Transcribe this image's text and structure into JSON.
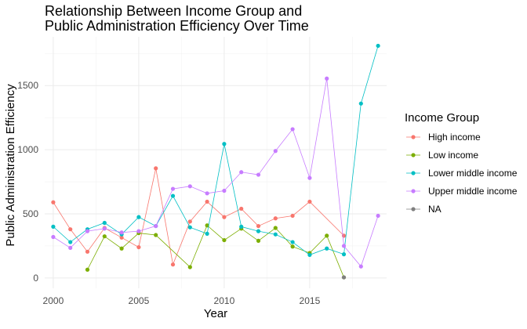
{
  "chart_data": {
    "type": "line",
    "title_lines": [
      "Relationship Between Income Group and",
      "Public Administration Efficiency Over Time"
    ],
    "xlabel": "Year",
    "ylabel": "Public Administration Efficiency",
    "xlim": [
      1999.5,
      2019.5
    ],
    "ylim": [
      -80,
      1880
    ],
    "x_ticks": [
      2000,
      2005,
      2010,
      2015
    ],
    "y_ticks": [
      0,
      500,
      1000,
      1500
    ],
    "grid": true,
    "legend_title": "Income Group",
    "legend_position": "right",
    "series": [
      {
        "name": "High income",
        "color": "#F8766D",
        "points": [
          [
            2000,
            590
          ],
          [
            2001,
            380
          ],
          [
            2002,
            205
          ],
          [
            2003,
            390
          ],
          [
            2004,
            315
          ],
          [
            2005,
            240
          ],
          [
            2006,
            855
          ],
          [
            2007,
            105
          ],
          [
            2008,
            440
          ],
          [
            2009,
            595
          ],
          [
            2010,
            475
          ],
          [
            2011,
            540
          ],
          [
            2012,
            405
          ],
          [
            2013,
            465
          ],
          [
            2014,
            485
          ],
          [
            2015,
            595
          ],
          [
            2017,
            330
          ]
        ]
      },
      {
        "name": "Low income",
        "color": "#7CAE00",
        "points": [
          [
            2002,
            65
          ],
          [
            2003,
            325
          ],
          [
            2004,
            230
          ],
          [
            2005,
            350
          ],
          [
            2006,
            335
          ],
          [
            2008,
            85
          ],
          [
            2009,
            410
          ],
          [
            2010,
            295
          ],
          [
            2011,
            385
          ],
          [
            2012,
            290
          ],
          [
            2013,
            390
          ],
          [
            2014,
            245
          ],
          [
            2015,
            195
          ],
          [
            2016,
            330
          ],
          [
            2017,
            5
          ]
        ]
      },
      {
        "name": "Lower middle income",
        "color": "#00BFC4",
        "points": [
          [
            2000,
            400
          ],
          [
            2001,
            280
          ],
          [
            2002,
            380
          ],
          [
            2003,
            430
          ],
          [
            2004,
            340
          ],
          [
            2005,
            475
          ],
          [
            2006,
            405
          ],
          [
            2007,
            640
          ],
          [
            2008,
            395
          ],
          [
            2009,
            345
          ],
          [
            2010,
            1045
          ],
          [
            2011,
            400
          ],
          [
            2012,
            365
          ],
          [
            2013,
            340
          ],
          [
            2014,
            280
          ],
          [
            2015,
            180
          ],
          [
            2016,
            230
          ],
          [
            2017,
            185
          ],
          [
            2018,
            1360
          ],
          [
            2019,
            1810
          ]
        ]
      },
      {
        "name": "Upper middle income",
        "color": "#C77CFF",
        "points": [
          [
            2000,
            320
          ],
          [
            2001,
            235
          ],
          [
            2002,
            365
          ],
          [
            2003,
            385
          ],
          [
            2004,
            355
          ],
          [
            2005,
            365
          ],
          [
            2006,
            405
          ],
          [
            2007,
            695
          ],
          [
            2008,
            715
          ],
          [
            2009,
            660
          ],
          [
            2010,
            680
          ],
          [
            2011,
            825
          ],
          [
            2012,
            805
          ],
          [
            2013,
            990
          ],
          [
            2014,
            1160
          ],
          [
            2015,
            780
          ],
          [
            2016,
            1555
          ],
          [
            2017,
            250
          ],
          [
            2018,
            90
          ],
          [
            2019,
            485
          ]
        ]
      },
      {
        "name": "NA",
        "color": "#7F7F7F",
        "points": [
          [
            2017,
            5
          ]
        ]
      }
    ]
  }
}
